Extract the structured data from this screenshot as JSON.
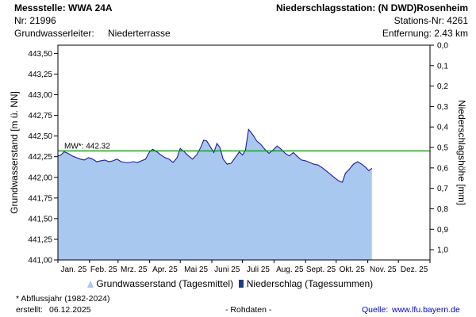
{
  "header": {
    "station_label": "Messstelle: WWA 24A",
    "number_label": "Nr: 21996",
    "aquifer_label": "Grundwasserleiter:",
    "aquifer_value": "Niederterrasse",
    "precip_station": "Niederschlagsstation: (N DWD)Rosenheim",
    "precip_station_nr": "Stations-Nr: 4261",
    "distance": "Entfernung: 2.43 km"
  },
  "footer": {
    "note": "* Abflussjahr (1982-2024)",
    "created_label": "erstellt:",
    "created_date": "06.12.2025",
    "raw": "- Rohdaten -",
    "source_label": "Quelle:",
    "source_url": "www.lfu.bayern.de"
  },
  "legend": {
    "groundwater": "Grundwasserstand (Tagesmittel)",
    "precipitation": "Niederschlag (Tagessummen)"
  },
  "colors": {
    "area_fill": "#a8c8f0",
    "area_line": "#1a1aa0",
    "mean_line": "#00a000",
    "precip": "#1a3a8a"
  },
  "chart_data": {
    "type": "area",
    "xlabel": "",
    "ylabel": "Grundwasserstand [m ü. NN]",
    "y2label": "Niederschlagshöhe [mm]",
    "x_tick_labels": [
      "Jan. 25",
      "Feb. 25",
      "Mrz. 25",
      "Apr. 25",
      "Mai 25",
      "Juni 25",
      "Juli 25",
      "Aug. 25",
      "Sept. 25",
      "Okt. 25",
      "Nov. 25",
      "Dez. 25"
    ],
    "y_tick_labels": [
      "441,00",
      "441,25",
      "441,50",
      "441,75",
      "442,00",
      "442,25",
      "442,50",
      "442,75",
      "443,00",
      "443,25",
      "443,50"
    ],
    "y2_tick_labels": [
      "0,0",
      "0,1",
      "0,2",
      "0,3",
      "0,4",
      "0,5",
      "0,6",
      "0,7",
      "0,8",
      "0,9",
      "1,0"
    ],
    "ylim": [
      441.0,
      443.6
    ],
    "y2lim": [
      0.0,
      1.05
    ],
    "xlim": [
      "2025-01-01",
      "2026-01-01"
    ],
    "mean_value": 442.32,
    "mean_label": "MW*: 442.32",
    "series": [
      {
        "name": "Grundwasserstand (Tagesmittel)",
        "points": [
          [
            "2025-01-01",
            442.26
          ],
          [
            "2025-01-04",
            442.27
          ],
          [
            "2025-01-07",
            442.31
          ],
          [
            "2025-01-11",
            442.29
          ],
          [
            "2025-01-15",
            442.26
          ],
          [
            "2025-01-19",
            442.24
          ],
          [
            "2025-01-23",
            442.22
          ],
          [
            "2025-01-27",
            442.21
          ],
          [
            "2025-01-31",
            442.24
          ],
          [
            "2025-02-04",
            442.22
          ],
          [
            "2025-02-08",
            442.19
          ],
          [
            "2025-02-12",
            442.2
          ],
          [
            "2025-02-16",
            442.21
          ],
          [
            "2025-02-20",
            442.19
          ],
          [
            "2025-02-24",
            442.2
          ],
          [
            "2025-02-28",
            442.22
          ],
          [
            "2025-03-04",
            442.19
          ],
          [
            "2025-03-08",
            442.18
          ],
          [
            "2025-03-12",
            442.18
          ],
          [
            "2025-03-16",
            442.19
          ],
          [
            "2025-03-20",
            442.18
          ],
          [
            "2025-03-24",
            442.2
          ],
          [
            "2025-03-28",
            442.22
          ],
          [
            "2025-04-01",
            442.31
          ],
          [
            "2025-04-04",
            442.34
          ],
          [
            "2025-04-08",
            442.31
          ],
          [
            "2025-04-12",
            442.27
          ],
          [
            "2025-04-16",
            442.24
          ],
          [
            "2025-04-20",
            442.22
          ],
          [
            "2025-04-24",
            442.18
          ],
          [
            "2025-04-28",
            442.24
          ],
          [
            "2025-05-01",
            442.35
          ],
          [
            "2025-05-05",
            442.31
          ],
          [
            "2025-05-09",
            442.26
          ],
          [
            "2025-05-13",
            442.22
          ],
          [
            "2025-05-17",
            442.27
          ],
          [
            "2025-05-21",
            442.36
          ],
          [
            "2025-05-24",
            442.45
          ],
          [
            "2025-05-27",
            442.44
          ],
          [
            "2025-05-30",
            442.38
          ],
          [
            "2025-06-03",
            442.3
          ],
          [
            "2025-06-06",
            442.41
          ],
          [
            "2025-06-09",
            442.36
          ],
          [
            "2025-06-12",
            442.22
          ],
          [
            "2025-06-16",
            442.16
          ],
          [
            "2025-06-20",
            442.17
          ],
          [
            "2025-06-24",
            442.24
          ],
          [
            "2025-06-28",
            442.31
          ],
          [
            "2025-07-01",
            442.27
          ],
          [
            "2025-07-04",
            442.33
          ],
          [
            "2025-07-07",
            442.58
          ],
          [
            "2025-07-11",
            442.52
          ],
          [
            "2025-07-15",
            442.44
          ],
          [
            "2025-07-19",
            442.4
          ],
          [
            "2025-07-23",
            442.34
          ],
          [
            "2025-07-27",
            442.29
          ],
          [
            "2025-07-31",
            442.33
          ],
          [
            "2025-08-04",
            442.38
          ],
          [
            "2025-08-08",
            442.34
          ],
          [
            "2025-08-12",
            442.29
          ],
          [
            "2025-08-16",
            442.26
          ],
          [
            "2025-08-20",
            442.3
          ],
          [
            "2025-08-24",
            442.25
          ],
          [
            "2025-08-28",
            442.21
          ],
          [
            "2025-09-01",
            442.2
          ],
          [
            "2025-09-05",
            442.18
          ],
          [
            "2025-09-09",
            442.16
          ],
          [
            "2025-09-13",
            442.15
          ],
          [
            "2025-09-17",
            442.12
          ],
          [
            "2025-09-21",
            442.08
          ],
          [
            "2025-09-25",
            442.04
          ],
          [
            "2025-09-29",
            442.0
          ],
          [
            "2025-10-03",
            441.96
          ],
          [
            "2025-10-07",
            441.94
          ],
          [
            "2025-10-10",
            442.05
          ],
          [
            "2025-10-14",
            442.1
          ],
          [
            "2025-10-18",
            442.16
          ],
          [
            "2025-10-22",
            442.19
          ],
          [
            "2025-10-26",
            442.16
          ],
          [
            "2025-10-30",
            442.12
          ],
          [
            "2025-11-02",
            442.08
          ],
          [
            "2025-11-05",
            442.11
          ]
        ]
      },
      {
        "name": "Niederschlag (Tagessummen)",
        "points": []
      }
    ]
  }
}
